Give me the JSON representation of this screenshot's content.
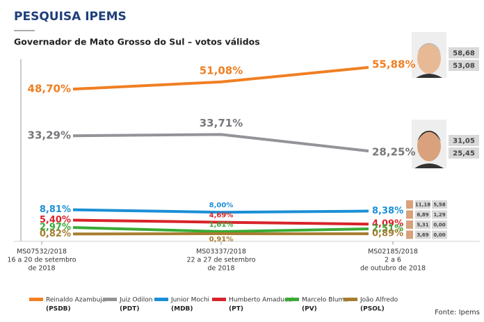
{
  "header": {
    "title": "PESQUISA IPEMS",
    "subtitle": "Governador de Mato Grosso do Sul – votos válidos"
  },
  "chart_data": {
    "type": "line",
    "categories": [
      [
        "MS07532/2018",
        "16 a 20 de setembro",
        "de 2018"
      ],
      [
        "MS03337/2018",
        "22 a 27 de setembro",
        "de 2018"
      ],
      [
        "MS02185/2018",
        "2 a 6",
        "de outubro de 2018"
      ]
    ],
    "series": [
      {
        "name": "Reinaldo Azambuja",
        "party": "(PSDB)",
        "color": "#f07f22",
        "values": [
          48.7,
          51.08,
          55.88
        ],
        "value_labels": [
          "48,70%",
          "51,08%",
          "55,88%"
        ],
        "extra": [
          "58,68",
          "53,08"
        ]
      },
      {
        "name": "Juiz Odilon",
        "party": "(PDT)",
        "color": "#939398",
        "values": [
          33.29,
          33.71,
          28.25
        ],
        "value_labels": [
          "33,29%",
          "33,71%",
          "28,25%"
        ],
        "extra": [
          "31,05",
          "25,45"
        ]
      },
      {
        "name": "Junior Mochi",
        "party": "(MDB)",
        "color": "#1b8fd6",
        "values": [
          8.81,
          8.0,
          8.38
        ],
        "value_labels": [
          "8,81%",
          "8,00%",
          "8,38%"
        ],
        "extra": [
          "11,18",
          "5,58"
        ]
      },
      {
        "name": "Humberto Amaducci",
        "party": "(PT)",
        "color": "#d8232a",
        "values": [
          5.4,
          4.69,
          4.09
        ],
        "value_labels": [
          "5,40%",
          "4,69%",
          "4,09%"
        ],
        "extra": [
          "6,89",
          "1,29"
        ]
      },
      {
        "name": "Marcelo Bluma",
        "party": "(PV)",
        "color": "#3aaa35",
        "values": [
          2.97,
          1.61,
          2.51
        ],
        "value_labels": [
          "2,97%",
          "1,61%",
          "2,51%"
        ],
        "extra": [
          "5,31",
          "0,00"
        ]
      },
      {
        "name": "João Alfredo",
        "party": "(PSOL)",
        "color": "#a67c2e",
        "values": [
          0.82,
          0.91,
          0.89
        ],
        "value_labels": [
          "0,82%",
          "0,91%",
          "0,89%"
        ],
        "extra": [
          "3,69",
          "0,00"
        ]
      }
    ],
    "source": "Fonte: Ipems"
  }
}
